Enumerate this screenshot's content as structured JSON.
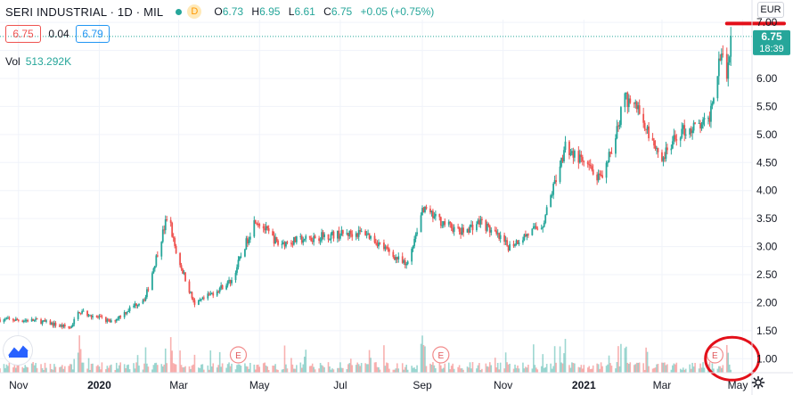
{
  "header": {
    "symbol": "SERI INDUSTRIAL · 1D · MIL",
    "badge": "D",
    "ohlc": {
      "o_label": "O",
      "o": "6.73",
      "h_label": "H",
      "h": "6.95",
      "l_label": "L",
      "l": "6.61",
      "c_label": "C",
      "c": "6.75",
      "change": "+0.05 (+0.75%)"
    }
  },
  "price_boxes": {
    "bid": "6.75",
    "spread": "0.04",
    "ask": "6.79"
  },
  "volume": {
    "label": "Vol",
    "value": "513.292K"
  },
  "currency": "EUR",
  "last_price": {
    "value": "6.75",
    "countdown": "18:39"
  },
  "colors": {
    "up": "#26a69a",
    "down": "#ef5350",
    "annotation": "#e3101a"
  },
  "icons": {
    "logo": "tradingview-logo-icon",
    "settings": "gear-icon",
    "earnings": "earnings-marker-icon"
  },
  "chart_data": {
    "type": "candlestick",
    "y_axis": {
      "min": 0.75,
      "max": 7.05,
      "ticks": [
        "1.00",
        "1.50",
        "2.00",
        "2.50",
        "3.00",
        "3.50",
        "4.00",
        "4.50",
        "5.00",
        "5.50",
        "6.00",
        "6.50",
        "7.00"
      ]
    },
    "x_axis": {
      "labels": [
        "Nov",
        "2020",
        "Mar",
        "May",
        "Jul",
        "Sep",
        "Nov",
        "2021",
        "Mar",
        "May"
      ],
      "label_dates": [
        "2019-11-01",
        "2020-01-01",
        "2020-03-01",
        "2020-05-01",
        "2020-07-01",
        "2020-09-01",
        "2020-11-01",
        "2021-01-01",
        "2021-03-01",
        "2021-05-01"
      ],
      "range": [
        "2019-10-18",
        "2021-05-08"
      ]
    },
    "price_path": [
      [
        "2019-10-18",
        1.7
      ],
      [
        "2019-11-15",
        1.68
      ],
      [
        "2019-12-10",
        1.55
      ],
      [
        "2019-12-17",
        1.85
      ],
      [
        "2020-01-10",
        1.65
      ],
      [
        "2020-02-05",
        2.1
      ],
      [
        "2020-02-22",
        3.6
      ],
      [
        "2020-02-28",
        2.9
      ],
      [
        "2020-03-13",
        1.95
      ],
      [
        "2020-04-10",
        2.4
      ],
      [
        "2020-04-28",
        3.5
      ],
      [
        "2020-05-15",
        3.05
      ],
      [
        "2020-06-20",
        3.2
      ],
      [
        "2020-07-20",
        3.25
      ],
      [
        "2020-08-20",
        2.65
      ],
      [
        "2020-09-01",
        3.65
      ],
      [
        "2020-09-30",
        3.25
      ],
      [
        "2020-10-15",
        3.45
      ],
      [
        "2020-11-05",
        3.0
      ],
      [
        "2020-12-01",
        3.4
      ],
      [
        "2020-12-18",
        4.8
      ],
      [
        "2021-01-15",
        4.15
      ],
      [
        "2021-02-01",
        5.65
      ],
      [
        "2021-02-10",
        5.5
      ],
      [
        "2021-03-01",
        4.55
      ],
      [
        "2021-03-15",
        5.05
      ],
      [
        "2021-04-05",
        5.2
      ],
      [
        "2021-04-15",
        6.6
      ],
      [
        "2021-04-19",
        6.0
      ],
      [
        "2021-04-22",
        6.75
      ]
    ],
    "volume_peaks": [
      [
        "2019-12-17",
        0.95
      ],
      [
        "2020-02-24",
        0.85
      ],
      [
        "2020-06-05",
        0.6
      ],
      [
        "2020-09-01",
        1.0
      ],
      [
        "2020-12-18",
        0.8
      ],
      [
        "2021-02-01",
        0.7
      ],
      [
        "2021-04-19",
        0.75
      ]
    ],
    "earnings_events": [
      "2020-04-15",
      "2020-09-15",
      "2021-04-10"
    ],
    "last_price": 6.75,
    "annotations": [
      {
        "type": "horizontal-line",
        "date_from": "2021-04-19",
        "price": 6.98,
        "color": "#e3101a"
      },
      {
        "type": "circle",
        "date": "2021-04-23",
        "price": 1.0,
        "color": "#e3101a"
      }
    ]
  }
}
